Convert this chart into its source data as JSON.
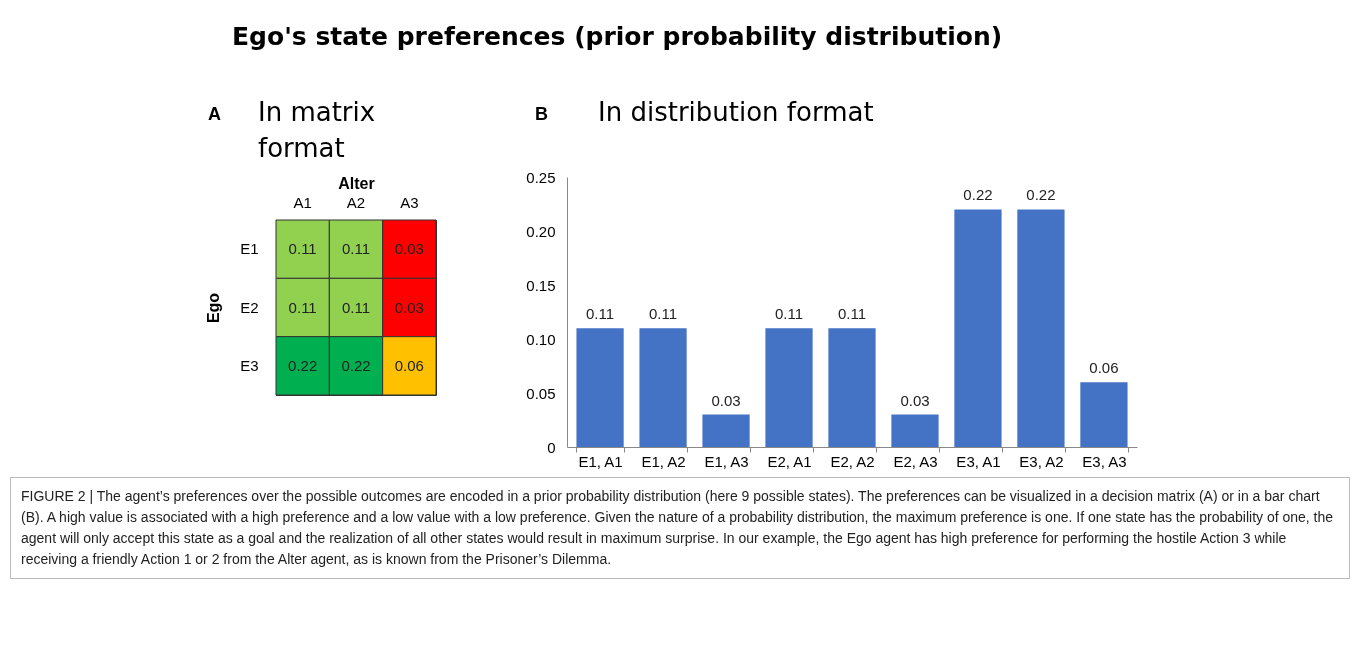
{
  "chart_data": [
    {
      "type": "heatmap",
      "title": "In matrix format",
      "xlabel": "Alter",
      "ylabel": "Ego",
      "categories": [
        "A1",
        "A2",
        "A3"
      ],
      "y_categories": [
        "E1",
        "E2",
        "E3"
      ],
      "cells": [
        [
          0.11,
          0.11,
          0.03
        ],
        [
          0.11,
          0.11,
          0.03
        ],
        [
          0.22,
          0.22,
          0.06
        ]
      ],
      "colors": [
        [
          "#92d050",
          "#92d050",
          "#ff0000"
        ],
        [
          "#92d050",
          "#92d050",
          "#ff0000"
        ],
        [
          "#00b050",
          "#00b050",
          "#ffc000"
        ]
      ],
      "data_labels": true,
      "annotations": [
        "Ego's state preferences (prior probability distribution)",
        "A",
        "FIGURE 2 | The agent’s preferences over the possible outcomes are encoded in a prior probability distribution (here 9 possible states). The preferences can be visualized in a decision matrix (A) or in a bar chart (B). A high value is associated with a high preference and a low value with a low preference. Given the nature of a probability distribution, the maximum preference is one. If one state has the probability of one, the agent will only accept this state as a goal and the realization of all other states would result in maximum surprise. In our example, the Ego agent has high preference for performing the hostile Action 3 while receiving a friendly Action 1 or 2 from the Alter agent, as is known from the Prisoner’s Dilemma."
      ]
    },
    {
      "type": "bar",
      "title": "In distribution format",
      "categories": [
        "E1, A1",
        "E1, A2",
        "E1, A3",
        "E2, A1",
        "E2, A2",
        "E2, A3",
        "E3, A1",
        "E3, A2",
        "E3, A3"
      ],
      "values": [
        0.11,
        0.11,
        0.03,
        0.11,
        0.11,
        0.03,
        0.22,
        0.22,
        0.06
      ],
      "color": "#4472c4",
      "data_labels": true,
      "ylim": [
        0,
        0.25
      ],
      "yticks": [
        0,
        0.05,
        {
          "value": 0.1,
          "label": "0.10"
        },
        0.15,
        {
          "value": 0.2,
          "label": "0.20"
        },
        0.25
      ],
      "annotations": [
        "B"
      ]
    }
  ]
}
